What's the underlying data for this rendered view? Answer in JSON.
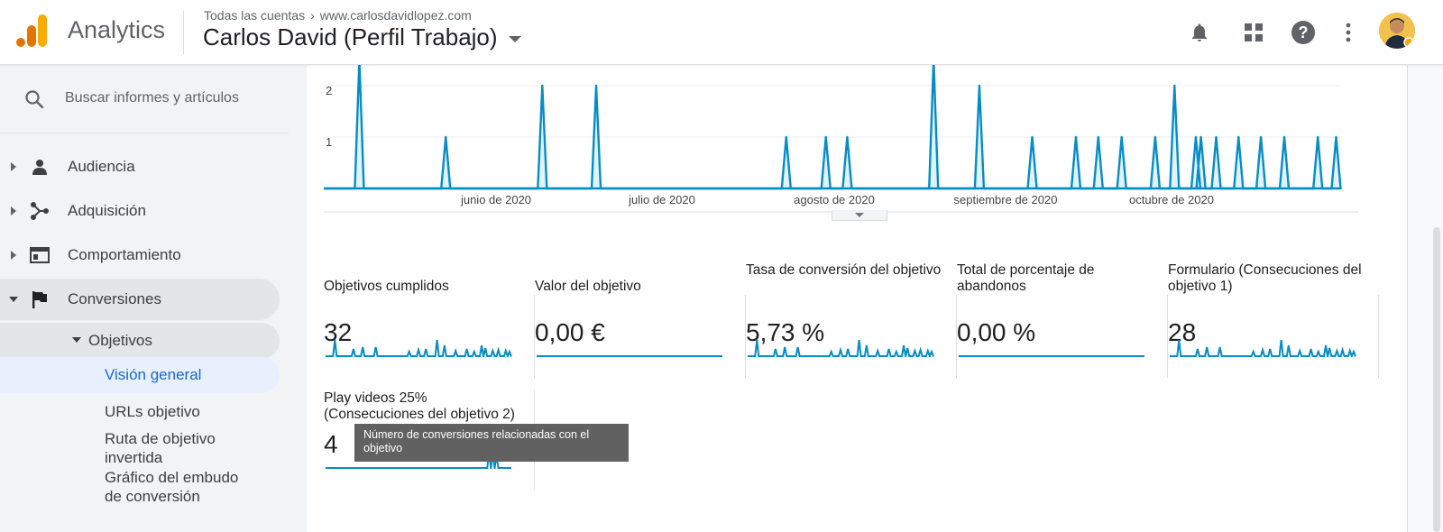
{
  "header": {
    "app_name": "Analytics",
    "breadcrumb_account": "Todas las cuentas",
    "breadcrumb_separator": "›",
    "breadcrumb_property": "www.carlosdavidlopez.com",
    "profile_name": "Carlos David (Perfil Trabajo)",
    "icons": [
      "bell-icon",
      "apps-grid-icon",
      "help-icon",
      "more-vert-icon"
    ]
  },
  "sidebar": {
    "search_placeholder": "Buscar informes y artículos",
    "items": [
      {
        "label": "Audiencia",
        "icon": "person-icon"
      },
      {
        "label": "Adquisición",
        "icon": "acquisition-icon"
      },
      {
        "label": "Comportamiento",
        "icon": "behavior-icon"
      },
      {
        "label": "Conversiones",
        "icon": "flag-icon"
      }
    ],
    "objetivos": "Objetivos",
    "vision_general": "Visión general",
    "urls_objetivo": "URLs objetivo",
    "ruta_objetivo": "Ruta de objetivo invertida",
    "grafico_embudo": "Gráfico del embudo de conversión"
  },
  "chart_data": {
    "type": "area",
    "y_ticks": [
      "2",
      "1"
    ],
    "x_labels": [
      "junio de 2020",
      "julio de 2020",
      "agosto de 2020",
      "septiembre de 2020",
      "octubre de 2020"
    ],
    "series_color": "#058dc7",
    "fill_color": "#e1f3f9",
    "ylim": [
      0,
      2.4
    ],
    "spikes": [
      {
        "x": 0.035,
        "y": 2.5
      },
      {
        "x": 0.12,
        "y": 1
      },
      {
        "x": 0.215,
        "y": 2
      },
      {
        "x": 0.268,
        "y": 2
      },
      {
        "x": 0.455,
        "y": 1
      },
      {
        "x": 0.494,
        "y": 1
      },
      {
        "x": 0.515,
        "y": 1
      },
      {
        "x": 0.6,
        "y": 2.5
      },
      {
        "x": 0.645,
        "y": 2
      },
      {
        "x": 0.697,
        "y": 1
      },
      {
        "x": 0.74,
        "y": 1
      },
      {
        "x": 0.762,
        "y": 1
      },
      {
        "x": 0.785,
        "y": 1
      },
      {
        "x": 0.818,
        "y": 1
      },
      {
        "x": 0.837,
        "y": 2
      },
      {
        "x": 0.858,
        "y": 1
      },
      {
        "x": 0.863,
        "y": 1
      },
      {
        "x": 0.878,
        "y": 1
      },
      {
        "x": 0.9,
        "y": 1
      },
      {
        "x": 0.922,
        "y": 1
      },
      {
        "x": 0.945,
        "y": 1
      },
      {
        "x": 0.978,
        "y": 1
      },
      {
        "x": 0.996,
        "y": 1
      }
    ]
  },
  "metrics": [
    {
      "label": "Objetivos cumplidos",
      "value": "32",
      "spark": "active"
    },
    {
      "label": "Valor del objetivo",
      "value": "0,00 €",
      "spark": "flat"
    },
    {
      "label": "Tasa de conversión del objetivo",
      "value": "5,73 %",
      "spark": "active"
    },
    {
      "label": "Total de porcentaje de abandonos",
      "value": "0,00 %",
      "spark": "flat"
    },
    {
      "label": "Formulario (Consecuciones del objetivo 1)",
      "value": "28",
      "spark": "active"
    },
    {
      "label": "Play videos 25% (Consecuciones del objetivo 2)",
      "value": "4",
      "spark": "late"
    }
  ],
  "tooltip": "Número de conversiones relacionadas con el objetivo",
  "colors": {
    "accent": "#058dc7",
    "active_nav": "#1967d2",
    "sidebar_bg": "#f1f3f4"
  }
}
